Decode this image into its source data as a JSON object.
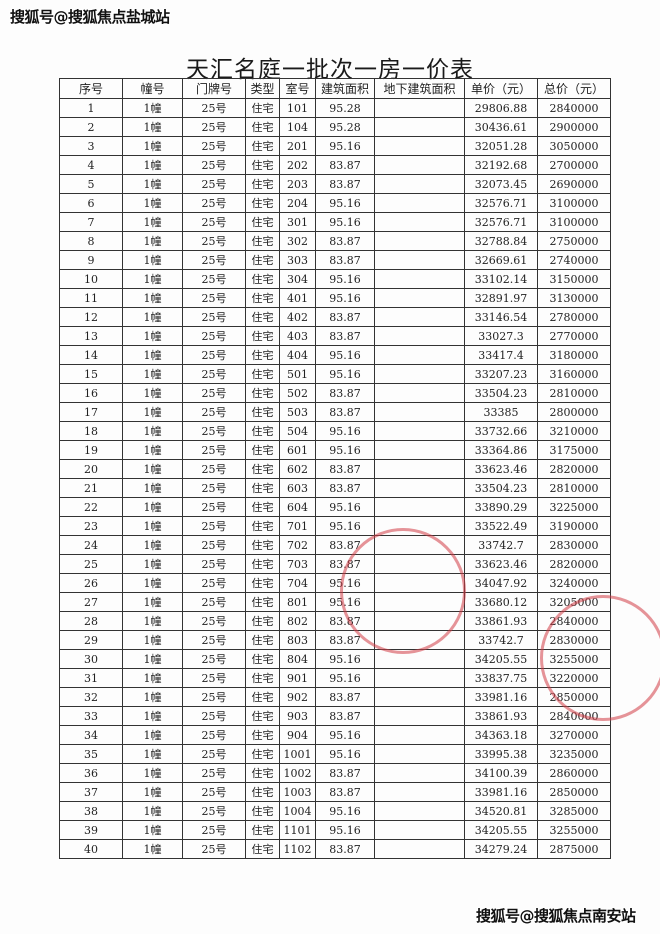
{
  "watermark_top": "搜狐号@搜狐焦点盐城站",
  "watermark_bottom": "搜狐号@搜狐焦点南安站",
  "title": "天汇名庭一批次一房一价表",
  "headers": [
    "序号",
    "幢号",
    "门牌号",
    "类型",
    "室号",
    "建筑面积",
    "地下建筑面积",
    "单价（元）",
    "总价（元）"
  ],
  "rows": [
    [
      "1",
      "1幢",
      "25号",
      "住宅",
      "101",
      "95.28",
      "",
      "29806.88",
      "2840000"
    ],
    [
      "2",
      "1幢",
      "25号",
      "住宅",
      "104",
      "95.28",
      "",
      "30436.61",
      "2900000"
    ],
    [
      "3",
      "1幢",
      "25号",
      "住宅",
      "201",
      "95.16",
      "",
      "32051.28",
      "3050000"
    ],
    [
      "4",
      "1幢",
      "25号",
      "住宅",
      "202",
      "83.87",
      "",
      "32192.68",
      "2700000"
    ],
    [
      "5",
      "1幢",
      "25号",
      "住宅",
      "203",
      "83.87",
      "",
      "32073.45",
      "2690000"
    ],
    [
      "6",
      "1幢",
      "25号",
      "住宅",
      "204",
      "95.16",
      "",
      "32576.71",
      "3100000"
    ],
    [
      "7",
      "1幢",
      "25号",
      "住宅",
      "301",
      "95.16",
      "",
      "32576.71",
      "3100000"
    ],
    [
      "8",
      "1幢",
      "25号",
      "住宅",
      "302",
      "83.87",
      "",
      "32788.84",
      "2750000"
    ],
    [
      "9",
      "1幢",
      "25号",
      "住宅",
      "303",
      "83.87",
      "",
      "32669.61",
      "2740000"
    ],
    [
      "10",
      "1幢",
      "25号",
      "住宅",
      "304",
      "95.16",
      "",
      "33102.14",
      "3150000"
    ],
    [
      "11",
      "1幢",
      "25号",
      "住宅",
      "401",
      "95.16",
      "",
      "32891.97",
      "3130000"
    ],
    [
      "12",
      "1幢",
      "25号",
      "住宅",
      "402",
      "83.87",
      "",
      "33146.54",
      "2780000"
    ],
    [
      "13",
      "1幢",
      "25号",
      "住宅",
      "403",
      "83.87",
      "",
      "33027.3",
      "2770000"
    ],
    [
      "14",
      "1幢",
      "25号",
      "住宅",
      "404",
      "95.16",
      "",
      "33417.4",
      "3180000"
    ],
    [
      "15",
      "1幢",
      "25号",
      "住宅",
      "501",
      "95.16",
      "",
      "33207.23",
      "3160000"
    ],
    [
      "16",
      "1幢",
      "25号",
      "住宅",
      "502",
      "83.87",
      "",
      "33504.23",
      "2810000"
    ],
    [
      "17",
      "1幢",
      "25号",
      "住宅",
      "503",
      "83.87",
      "",
      "33385",
      "2800000"
    ],
    [
      "18",
      "1幢",
      "25号",
      "住宅",
      "504",
      "95.16",
      "",
      "33732.66",
      "3210000"
    ],
    [
      "19",
      "1幢",
      "25号",
      "住宅",
      "601",
      "95.16",
      "",
      "33364.86",
      "3175000"
    ],
    [
      "20",
      "1幢",
      "25号",
      "住宅",
      "602",
      "83.87",
      "",
      "33623.46",
      "2820000"
    ],
    [
      "21",
      "1幢",
      "25号",
      "住宅",
      "603",
      "83.87",
      "",
      "33504.23",
      "2810000"
    ],
    [
      "22",
      "1幢",
      "25号",
      "住宅",
      "604",
      "95.16",
      "",
      "33890.29",
      "3225000"
    ],
    [
      "23",
      "1幢",
      "25号",
      "住宅",
      "701",
      "95.16",
      "",
      "33522.49",
      "3190000"
    ],
    [
      "24",
      "1幢",
      "25号",
      "住宅",
      "702",
      "83.87",
      "",
      "33742.7",
      "2830000"
    ],
    [
      "25",
      "1幢",
      "25号",
      "住宅",
      "703",
      "83.87",
      "",
      "33623.46",
      "2820000"
    ],
    [
      "26",
      "1幢",
      "25号",
      "住宅",
      "704",
      "95.16",
      "",
      "34047.92",
      "3240000"
    ],
    [
      "27",
      "1幢",
      "25号",
      "住宅",
      "801",
      "95.16",
      "",
      "33680.12",
      "3205000"
    ],
    [
      "28",
      "1幢",
      "25号",
      "住宅",
      "802",
      "83.87",
      "",
      "33861.93",
      "2840000"
    ],
    [
      "29",
      "1幢",
      "25号",
      "住宅",
      "803",
      "83.87",
      "",
      "33742.7",
      "2830000"
    ],
    [
      "30",
      "1幢",
      "25号",
      "住宅",
      "804",
      "95.16",
      "",
      "34205.55",
      "3255000"
    ],
    [
      "31",
      "1幢",
      "25号",
      "住宅",
      "901",
      "95.16",
      "",
      "33837.75",
      "3220000"
    ],
    [
      "32",
      "1幢",
      "25号",
      "住宅",
      "902",
      "83.87",
      "",
      "33981.16",
      "2850000"
    ],
    [
      "33",
      "1幢",
      "25号",
      "住宅",
      "903",
      "83.87",
      "",
      "33861.93",
      "2840000"
    ],
    [
      "34",
      "1幢",
      "25号",
      "住宅",
      "904",
      "95.16",
      "",
      "34363.18",
      "3270000"
    ],
    [
      "35",
      "1幢",
      "25号",
      "住宅",
      "1001",
      "95.16",
      "",
      "33995.38",
      "3235000"
    ],
    [
      "36",
      "1幢",
      "25号",
      "住宅",
      "1002",
      "83.87",
      "",
      "34100.39",
      "2860000"
    ],
    [
      "37",
      "1幢",
      "25号",
      "住宅",
      "1003",
      "83.87",
      "",
      "33981.16",
      "2850000"
    ],
    [
      "38",
      "1幢",
      "25号",
      "住宅",
      "1004",
      "95.16",
      "",
      "34520.81",
      "3285000"
    ],
    [
      "39",
      "1幢",
      "25号",
      "住宅",
      "1101",
      "95.16",
      "",
      "34205.55",
      "3255000"
    ],
    [
      "40",
      "1幢",
      "25号",
      "住宅",
      "1102",
      "83.87",
      "",
      "34279.24",
      "2875000"
    ]
  ],
  "colors": {
    "stamp": "#d23c46",
    "ink": "#222222"
  }
}
